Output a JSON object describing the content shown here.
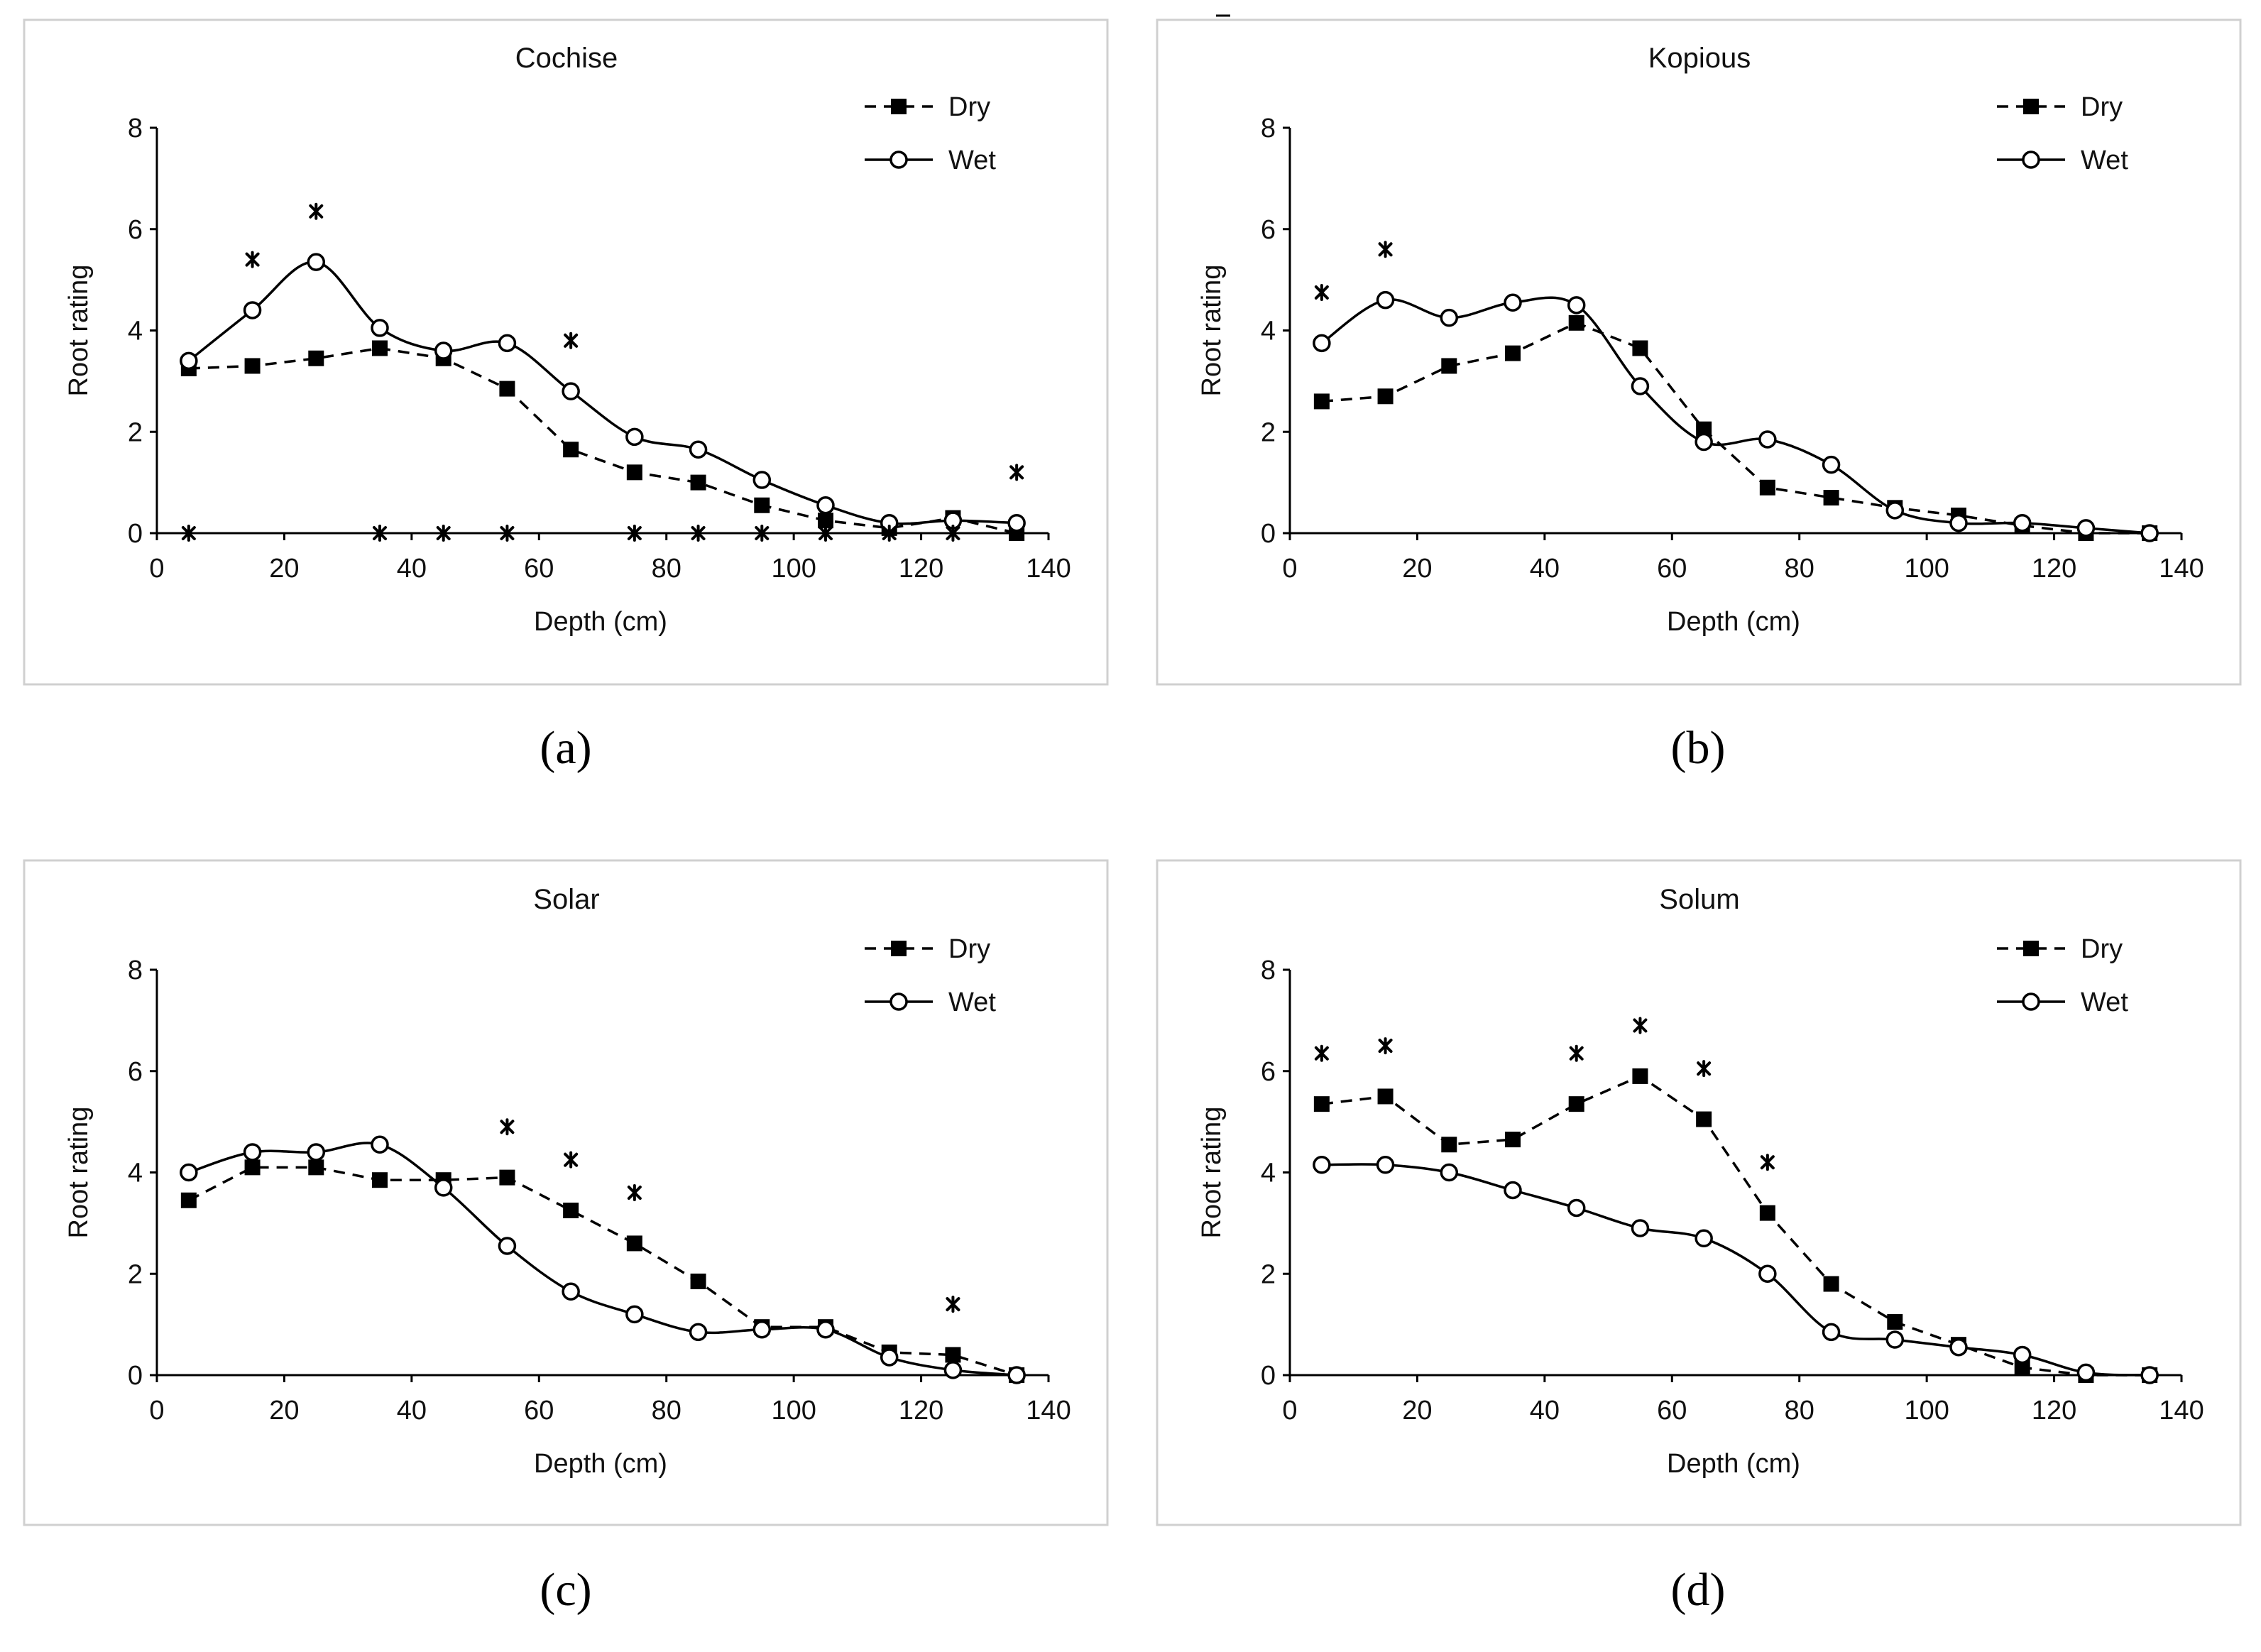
{
  "chart_data": [
    {
      "type": "line",
      "panel_label": "(a)",
      "title": "Cochise",
      "xlabel": "Depth (cm)",
      "ylabel": "Root rating",
      "xlim": [
        0,
        140
      ],
      "ylim": [
        0,
        8
      ],
      "xticks": [
        0,
        20,
        40,
        60,
        80,
        100,
        120,
        140
      ],
      "yticks": [
        0,
        2,
        4,
        6,
        8
      ],
      "legend": "top-right",
      "x": [
        5,
        15,
        25,
        35,
        45,
        55,
        65,
        75,
        85,
        95,
        105,
        115,
        125,
        135
      ],
      "series": [
        {
          "name": "Dry",
          "line": "dashed",
          "marker": "filled-square",
          "values": [
            3.25,
            3.3,
            3.45,
            3.65,
            3.45,
            2.85,
            1.65,
            1.2,
            1.0,
            0.55,
            0.25,
            0.1,
            0.3,
            0.0
          ]
        },
        {
          "name": "Wet",
          "line": "solid",
          "marker": "open-circle",
          "values": [
            3.4,
            4.4,
            5.35,
            4.05,
            3.6,
            3.75,
            2.8,
            1.9,
            1.65,
            1.05,
            0.55,
            0.2,
            0.25,
            0.2
          ]
        }
      ],
      "significance_marks": [
        {
          "x": 5,
          "y": 0
        },
        {
          "x": 15,
          "y": 5.4
        },
        {
          "x": 25,
          "y": 6.35
        },
        {
          "x": 35,
          "y": 0
        },
        {
          "x": 45,
          "y": 0
        },
        {
          "x": 55,
          "y": 0
        },
        {
          "x": 65,
          "y": 3.8
        },
        {
          "x": 75,
          "y": 0
        },
        {
          "x": 85,
          "y": 0
        },
        {
          "x": 95,
          "y": 0
        },
        {
          "x": 105,
          "y": 0
        },
        {
          "x": 115,
          "y": 0
        },
        {
          "x": 125,
          "y": 0
        },
        {
          "x": 135,
          "y": 1.2
        }
      ]
    },
    {
      "type": "line",
      "panel_label": "(b)",
      "title": "Kopious",
      "xlabel": "Depth (cm)",
      "ylabel": "Root rating",
      "xlim": [
        0,
        140
      ],
      "ylim": [
        0,
        8
      ],
      "xticks": [
        0,
        20,
        40,
        60,
        80,
        100,
        120,
        140
      ],
      "yticks": [
        0,
        2,
        4,
        6,
        8
      ],
      "legend": "top-right",
      "x": [
        5,
        15,
        25,
        35,
        45,
        55,
        65,
        75,
        85,
        95,
        105,
        115,
        125,
        135
      ],
      "series": [
        {
          "name": "Dry",
          "line": "dashed",
          "marker": "filled-square",
          "values": [
            2.6,
            2.7,
            3.3,
            3.55,
            4.15,
            3.65,
            2.05,
            0.9,
            0.7,
            0.5,
            0.35,
            0.15,
            0.0,
            0.0
          ]
        },
        {
          "name": "Wet",
          "line": "solid",
          "marker": "open-circle",
          "values": [
            3.75,
            4.6,
            4.25,
            4.55,
            4.5,
            2.9,
            1.8,
            1.85,
            1.35,
            0.45,
            0.2,
            0.2,
            0.1,
            0.0
          ]
        }
      ],
      "significance_marks": [
        {
          "x": 5,
          "y": 4.75
        },
        {
          "x": 15,
          "y": 5.6
        }
      ]
    },
    {
      "type": "line",
      "panel_label": "(c)",
      "title": "Solar",
      "xlabel": "Depth (cm)",
      "ylabel": "Root rating",
      "xlim": [
        0,
        140
      ],
      "ylim": [
        0,
        8
      ],
      "xticks": [
        0,
        20,
        40,
        60,
        80,
        100,
        120,
        140
      ],
      "yticks": [
        0,
        2,
        4,
        6,
        8
      ],
      "legend": "top-right",
      "x": [
        5,
        15,
        25,
        35,
        45,
        55,
        65,
        75,
        85,
        95,
        105,
        115,
        125,
        135
      ],
      "series": [
        {
          "name": "Dry",
          "line": "dashed",
          "marker": "filled-square",
          "values": [
            3.45,
            4.1,
            4.1,
            3.85,
            3.85,
            3.9,
            3.25,
            2.6,
            1.85,
            0.95,
            0.95,
            0.45,
            0.4,
            0.0
          ]
        },
        {
          "name": "Wet",
          "line": "solid",
          "marker": "open-circle",
          "values": [
            4.0,
            4.4,
            4.4,
            4.55,
            3.7,
            2.55,
            1.65,
            1.2,
            0.85,
            0.9,
            0.9,
            0.35,
            0.1,
            0.0
          ]
        }
      ],
      "significance_marks": [
        {
          "x": 55,
          "y": 4.9
        },
        {
          "x": 65,
          "y": 4.25
        },
        {
          "x": 75,
          "y": 3.6
        },
        {
          "x": 125,
          "y": 1.4
        }
      ]
    },
    {
      "type": "line",
      "panel_label": "(d)",
      "title": "Solum",
      "xlabel": "Depth (cm)",
      "ylabel": "Root rating",
      "xlim": [
        0,
        140
      ],
      "ylim": [
        0,
        8
      ],
      "xticks": [
        0,
        20,
        40,
        60,
        80,
        100,
        120,
        140
      ],
      "yticks": [
        0,
        2,
        4,
        6,
        8
      ],
      "legend": "top-right",
      "x": [
        5,
        15,
        25,
        35,
        45,
        55,
        65,
        75,
        85,
        95,
        105,
        115,
        125,
        135
      ],
      "series": [
        {
          "name": "Dry",
          "line": "dashed",
          "marker": "filled-square",
          "values": [
            5.35,
            5.5,
            4.55,
            4.65,
            5.35,
            5.9,
            5.05,
            3.2,
            1.8,
            1.05,
            0.6,
            0.15,
            0.0,
            0.0
          ]
        },
        {
          "name": "Wet",
          "line": "solid",
          "marker": "open-circle",
          "values": [
            4.15,
            4.15,
            4.0,
            3.65,
            3.3,
            2.9,
            2.7,
            2.0,
            0.85,
            0.7,
            0.55,
            0.4,
            0.05,
            0.0
          ]
        }
      ],
      "significance_marks": [
        {
          "x": 5,
          "y": 6.35
        },
        {
          "x": 15,
          "y": 6.5
        },
        {
          "x": 45,
          "y": 6.35
        },
        {
          "x": 55,
          "y": 6.9
        },
        {
          "x": 65,
          "y": 6.05
        },
        {
          "x": 75,
          "y": 4.2
        }
      ]
    }
  ]
}
